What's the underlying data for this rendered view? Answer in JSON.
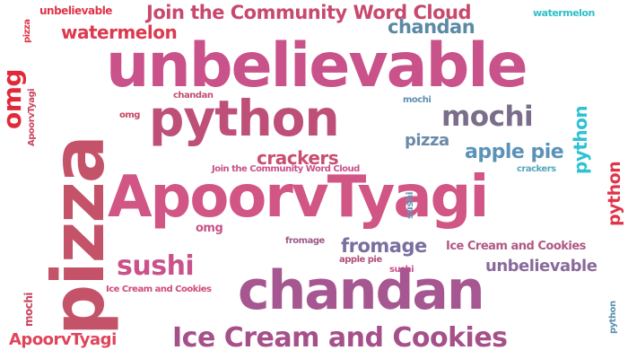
{
  "words": [
    {
      "text": "Join the Community Word Cloud",
      "color": "#c9486e"
    },
    {
      "text": "unbelievable",
      "color": "#e0344a"
    },
    {
      "text": "watermelon",
      "color": "#2fbfc9"
    },
    {
      "text": "pizza",
      "color": "#e0344a"
    },
    {
      "text": "watermelon",
      "color": "#dc3a4f"
    },
    {
      "text": "chandan",
      "color": "#5a8aa6"
    },
    {
      "text": "unbelievable",
      "color": "#c9528a"
    },
    {
      "text": "pizza",
      "color": "#c4536a"
    },
    {
      "text": "omg",
      "color": "#e02a3a"
    },
    {
      "text": "ApoorvTyagi",
      "color": "#c94560"
    },
    {
      "text": "python",
      "color": "#bd4f78"
    },
    {
      "text": "chandan",
      "color": "#c14f6f"
    },
    {
      "text": "omg",
      "color": "#c94560"
    },
    {
      "text": "mochi",
      "color": "#5b90b0"
    },
    {
      "text": "mochi",
      "color": "#7a6e8a"
    },
    {
      "text": "python",
      "color": "#2fc2d2"
    },
    {
      "text": "pizza",
      "color": "#6a8aa8"
    },
    {
      "text": "apple pie",
      "color": "#5b93b8"
    },
    {
      "text": "crackers",
      "color": "#c94f6f"
    },
    {
      "text": "crackers",
      "color": "#54a6bf"
    },
    {
      "text": "Join the Community Word Cloud",
      "color": "#c9528a"
    },
    {
      "text": "ApoorvTyagi",
      "color": "#d15585"
    },
    {
      "text": "sushi",
      "color": "#6a96b5"
    },
    {
      "text": "python",
      "color": "#e0344a"
    },
    {
      "text": "omg",
      "color": "#c9528a"
    },
    {
      "text": "fromage",
      "color": "#9e5a8a"
    },
    {
      "text": "fromage",
      "color": "#7b6fa0"
    },
    {
      "text": "Ice Cream and Cookies",
      "color": "#b05a84"
    },
    {
      "text": "sushi",
      "color": "#c9528a"
    },
    {
      "text": "apple pie",
      "color": "#b04f7a"
    },
    {
      "text": "unbelievable",
      "color": "#8a6a9a"
    },
    {
      "text": "sushi",
      "color": "#c9528a"
    },
    {
      "text": "chandan",
      "color": "#a65690"
    },
    {
      "text": "Ice Cream and Cookies",
      "color": "#d14a78"
    },
    {
      "text": "mochi",
      "color": "#c94560"
    },
    {
      "text": "python",
      "color": "#5b8fb3"
    },
    {
      "text": "ApoorvTyagi",
      "color": "#e0445a"
    },
    {
      "text": "Ice Cream and Cookies",
      "color": "#a6508a"
    }
  ]
}
